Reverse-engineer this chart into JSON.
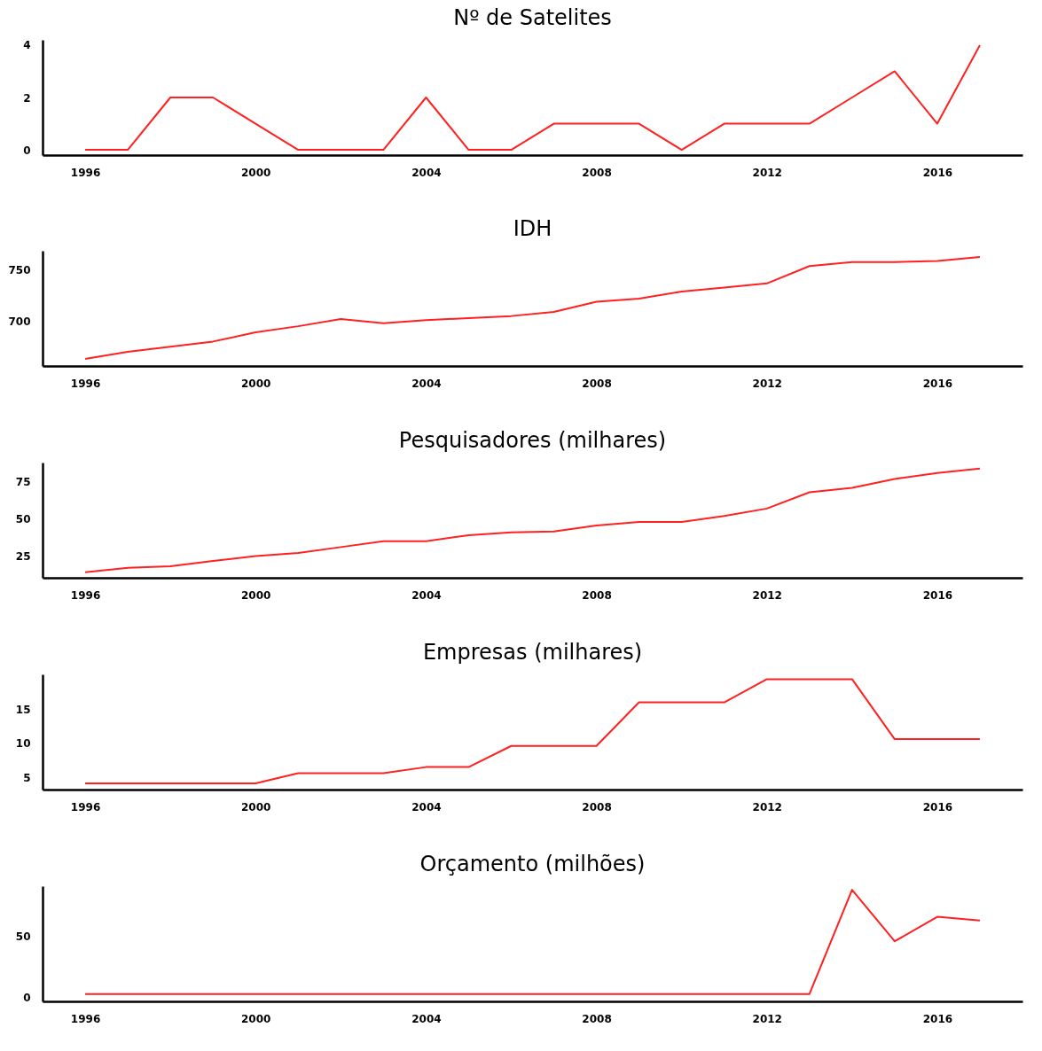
{
  "chart_data": [
    {
      "type": "line",
      "title": "Nº de Satelites",
      "x": [
        1996,
        1997,
        1998,
        1999,
        2000,
        2001,
        2002,
        2003,
        2004,
        2005,
        2006,
        2007,
        2008,
        2009,
        2010,
        2011,
        2012,
        2013,
        2014,
        2015,
        2016,
        2017
      ],
      "series": [
        {
          "color": "#ff2020",
          "values": [
            0,
            0,
            2,
            2,
            1,
            0,
            0,
            0,
            2,
            0,
            0,
            1,
            1,
            1,
            0,
            1,
            1,
            1,
            2,
            3,
            1,
            4
          ]
        }
      ],
      "xlim": [
        1995,
        2018
      ],
      "xticks": [
        1996,
        2000,
        2004,
        2008,
        2012,
        2016
      ],
      "ylim": [
        -0.2,
        4.2
      ],
      "yticks": [
        0,
        2,
        4
      ],
      "grid": false
    },
    {
      "type": "line",
      "title": "IDH",
      "x": [
        1996,
        1997,
        1998,
        1999,
        2000,
        2001,
        2002,
        2003,
        2004,
        2005,
        2006,
        2007,
        2008,
        2009,
        2010,
        2011,
        2012,
        2013,
        2014,
        2015,
        2016,
        2017
      ],
      "series": [
        {
          "color": "#ff2020",
          "values": [
            663,
            670,
            675,
            680,
            689,
            695,
            702,
            698,
            701,
            703,
            705,
            709,
            719,
            722,
            729,
            733,
            737,
            754,
            758,
            758,
            759,
            763
          ]
        }
      ],
      "xlim": [
        1995,
        2018
      ],
      "xticks": [
        1996,
        2000,
        2004,
        2008,
        2012,
        2016
      ],
      "ylim": [
        656,
        769
      ],
      "yticks": [
        700,
        750
      ],
      "grid": false
    },
    {
      "type": "line",
      "title": "Pesquisadores (milhares)",
      "x": [
        1996,
        1997,
        1998,
        1999,
        2000,
        2001,
        2002,
        2003,
        2004,
        2005,
        2006,
        2007,
        2008,
        2009,
        2010,
        2011,
        2012,
        2013,
        2014,
        2015,
        2016,
        2017
      ],
      "series": [
        {
          "color": "#ff2020",
          "values": [
            14,
            17,
            18,
            21.6,
            25,
            27,
            31,
            35,
            35,
            39,
            41,
            41.5,
            45.6,
            48,
            48,
            52,
            57,
            68,
            71,
            77,
            81,
            84
          ]
        }
      ],
      "xlim": [
        1995,
        2018
      ],
      "xticks": [
        1996,
        2000,
        2004,
        2008,
        2012,
        2016
      ],
      "ylim": [
        10.3,
        88
      ],
      "yticks": [
        25,
        50,
        75
      ],
      "grid": false
    },
    {
      "type": "line",
      "title": "Empresas (milhares)",
      "x": [
        1996,
        1997,
        1998,
        1999,
        2000,
        2001,
        2002,
        2003,
        2004,
        2005,
        2006,
        2007,
        2008,
        2009,
        2010,
        2011,
        2012,
        2013,
        2014,
        2015,
        2016,
        2017
      ],
      "series": [
        {
          "color": "#ff2020",
          "values": [
            4.1,
            4.1,
            4.1,
            4.1,
            4.1,
            5.6,
            5.6,
            5.6,
            6.5,
            6.5,
            9.6,
            9.6,
            9.6,
            16,
            16,
            16,
            19.4,
            19.4,
            19.4,
            10.6,
            10.6,
            10.6
          ]
        }
      ],
      "xlim": [
        1995,
        2018
      ],
      "xticks": [
        1996,
        2000,
        2004,
        2008,
        2012,
        2016
      ],
      "ylim": [
        3.2,
        20.1
      ],
      "yticks": [
        5,
        10,
        15
      ],
      "grid": false
    },
    {
      "type": "line",
      "title": "Orçamento (milhões)",
      "x": [
        1996,
        1997,
        1998,
        1999,
        2000,
        2001,
        2002,
        2003,
        2004,
        2005,
        2006,
        2007,
        2008,
        2009,
        2010,
        2011,
        2012,
        2013,
        2014,
        2015,
        2016,
        2017
      ],
      "series": [
        {
          "color": "#ff2020",
          "values": [
            3,
            3,
            3,
            3,
            3,
            3,
            3,
            3,
            3,
            3,
            3,
            3,
            3,
            3,
            3,
            3,
            3,
            3,
            88,
            46,
            66,
            63
          ]
        }
      ],
      "xlim": [
        1995,
        2018
      ],
      "xticks": [
        1996,
        2000,
        2004,
        2008,
        2012,
        2016
      ],
      "ylim": [
        -3,
        91
      ],
      "yticks": [
        0,
        50
      ],
      "grid": false
    }
  ]
}
